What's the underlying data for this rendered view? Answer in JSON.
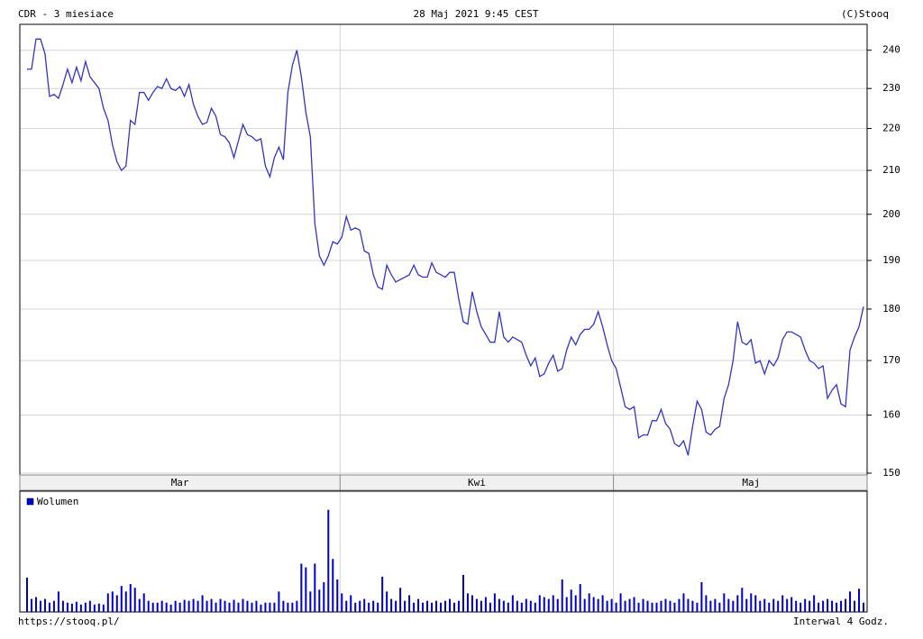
{
  "header": {
    "left": "CDR - 3 miesiace",
    "center": "28 Maj 2021 9:45 CEST",
    "right": "(C)Stooq"
  },
  "footer": {
    "left": "https://stooq.pl/",
    "right": "Interwal 4 Godz."
  },
  "chart_data": [
    {
      "type": "line",
      "color": "#3333cc",
      "log": true,
      "grid": true,
      "ylim": [
        149.7,
        247
      ],
      "yticks": [
        150,
        160,
        170,
        180,
        190,
        200,
        210,
        220,
        230,
        240
      ],
      "categories": [
        null,
        null,
        null,
        null,
        null,
        null,
        null,
        null,
        null,
        null,
        null,
        null,
        null,
        null,
        null,
        null,
        null,
        null,
        null,
        null,
        null,
        null,
        null,
        null,
        null,
        null,
        null,
        null,
        null,
        null,
        null,
        null,
        null,
        null,
        "Mar",
        null,
        null,
        null,
        null,
        null,
        null,
        null,
        null,
        null,
        null,
        null,
        null,
        null,
        null,
        null,
        null,
        null,
        null,
        null,
        null,
        null,
        null,
        null,
        null,
        null,
        null,
        null,
        null,
        null,
        null,
        null,
        null,
        null,
        null,
        null,
        null,
        null,
        null,
        null,
        null,
        null,
        null,
        null,
        null,
        null,
        null,
        null,
        null,
        null,
        null,
        null,
        null,
        null,
        null,
        null,
        null,
        null,
        null,
        null,
        null,
        null,
        null,
        null,
        null,
        null,
        "Kwi",
        null,
        null,
        null,
        null,
        null,
        null,
        null,
        null,
        null,
        null,
        null,
        null,
        null,
        null,
        null,
        null,
        null,
        null,
        null,
        null,
        null,
        null,
        null,
        null,
        null,
        null,
        null,
        null,
        null,
        null,
        null,
        null,
        null,
        null,
        null,
        null,
        null,
        null,
        null,
        null,
        null,
        null,
        null,
        null,
        null,
        null,
        null,
        null,
        null,
        null,
        null,
        null,
        null,
        null,
        null,
        null,
        null,
        null,
        null,
        null,
        "Maj",
        null,
        null,
        null,
        null,
        null,
        null,
        null,
        null,
        null,
        null,
        null,
        null,
        null,
        null,
        null,
        null,
        null,
        null,
        null,
        null,
        null,
        null,
        null,
        null,
        null
      ],
      "values": [
        235,
        235,
        243,
        243,
        239,
        228,
        228.5,
        227.5,
        231,
        235,
        231.5,
        235.5,
        232,
        237,
        233,
        231.5,
        230,
        225,
        222,
        216,
        212,
        210,
        211,
        222,
        221,
        229,
        229,
        227,
        229,
        230.5,
        230,
        232.5,
        230,
        229.5,
        230.5,
        228,
        231,
        226,
        223,
        221,
        221.5,
        225,
        223,
        218.5,
        218,
        216.5,
        213,
        217,
        221,
        218.5,
        218,
        217,
        217.5,
        211,
        208.5,
        213,
        215.5,
        212.5,
        229,
        236,
        240,
        233,
        224,
        218,
        198,
        191,
        189,
        191,
        194,
        193.5,
        195,
        199.5,
        196.5,
        197,
        196.5,
        192,
        191.5,
        187,
        184.5,
        184,
        189,
        187,
        185.5,
        186,
        186.5,
        187,
        189,
        187,
        186.5,
        186.5,
        189.5,
        187.5,
        187,
        186.5,
        187.5,
        187.5,
        182,
        177.5,
        177,
        183.5,
        179.5,
        176.5,
        175,
        173.5,
        173.5,
        179.5,
        174.5,
        173.5,
        174.5,
        174,
        173.5,
        171,
        169,
        170.5,
        167,
        167.5,
        169.5,
        171,
        168,
        168.5,
        172,
        174.5,
        173,
        175,
        176,
        176,
        177,
        179.5,
        176.5,
        173,
        170,
        168.5,
        165,
        161.5,
        161,
        161.5,
        156,
        156.5,
        156.5,
        159,
        159,
        161,
        158.5,
        157.5,
        155,
        154.5,
        155.5,
        153,
        158,
        162.5,
        161,
        157,
        156.5,
        157.5,
        158,
        163,
        165.5,
        170,
        177.5,
        173.5,
        173,
        174,
        169.5,
        170,
        167.5,
        170,
        169,
        170.5,
        174,
        175.5,
        175.5,
        175,
        174.5,
        172,
        170,
        169.5,
        168.5,
        169,
        163,
        164.5,
        165.5,
        162,
        161.5,
        172,
        174.5,
        176.5,
        180.5
      ]
    },
    {
      "type": "bar",
      "ylim": [
        0,
        130
      ],
      "legend": "upper left",
      "series": [
        {
          "name": "Wolumen",
          "color": "#0000cc",
          "values": [
            37,
            14,
            16,
            12,
            14,
            10,
            12,
            22,
            12,
            10,
            9,
            11,
            8,
            10,
            12,
            8,
            9,
            8,
            20,
            22,
            18,
            28,
            22,
            30,
            26,
            14,
            20,
            12,
            10,
            10,
            12,
            10,
            8,
            12,
            10,
            13,
            12,
            14,
            12,
            18,
            12,
            14,
            10,
            14,
            12,
            10,
            13,
            10,
            14,
            12,
            10,
            12,
            8,
            10,
            10,
            10,
            22,
            12,
            10,
            10,
            12,
            52,
            48,
            22,
            52,
            24,
            32,
            110,
            57,
            35,
            20,
            12,
            18,
            10,
            12,
            14,
            10,
            12,
            10,
            38,
            22,
            14,
            12,
            26,
            12,
            18,
            10,
            14,
            10,
            12,
            10,
            12,
            10,
            12,
            14,
            10,
            12,
            40,
            20,
            18,
            14,
            12,
            16,
            10,
            20,
            14,
            12,
            10,
            18,
            12,
            10,
            14,
            12,
            10,
            18,
            16,
            14,
            18,
            14,
            35,
            16,
            24,
            18,
            30,
            14,
            20,
            16,
            14,
            18,
            12,
            14,
            10,
            20,
            12,
            14,
            16,
            10,
            14,
            12,
            10,
            10,
            12,
            14,
            12,
            10,
            14,
            20,
            14,
            12,
            10,
            32,
            18,
            12,
            14,
            10,
            20,
            14,
            12,
            18,
            26,
            14,
            20,
            18,
            12,
            14,
            10,
            14,
            12,
            18,
            14,
            16,
            12,
            10,
            14,
            12,
            18,
            10,
            12,
            14,
            12,
            10,
            12,
            14,
            22,
            12,
            25,
            10
          ]
        }
      ]
    }
  ]
}
